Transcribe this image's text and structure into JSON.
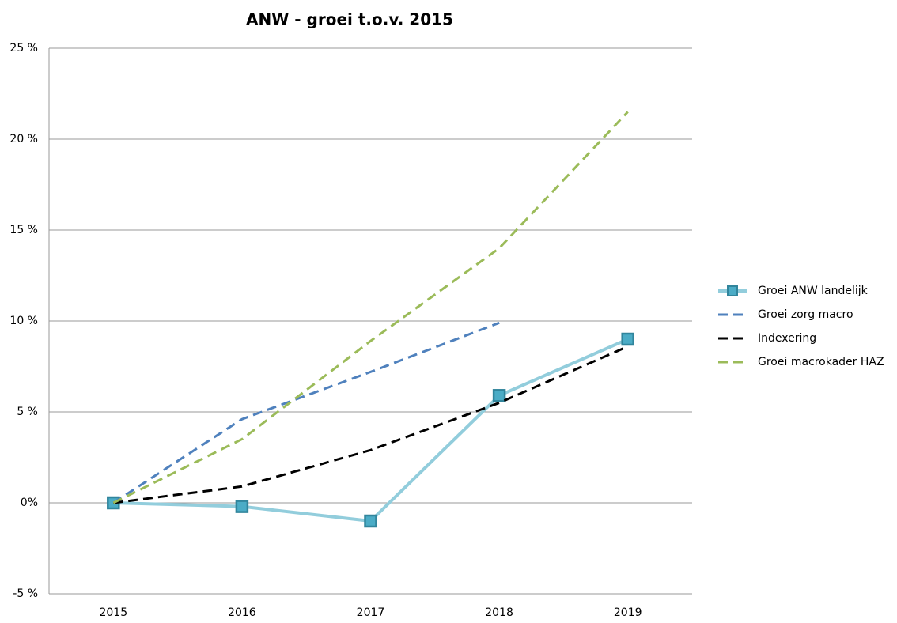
{
  "chart_data": {
    "type": "line",
    "title": "ANW - groei t.o.v. 2015",
    "categories": [
      "2015",
      "2016",
      "2017",
      "2018",
      "2019"
    ],
    "series": [
      {
        "name": "Groei ANW landelijk",
        "color": "#92cddc",
        "marker_color": "#4bacc6",
        "marker_edge": "#31859c",
        "dashed": false,
        "marker": true,
        "values": [
          0,
          -0.2,
          -1.0,
          5.9,
          9.0
        ]
      },
      {
        "name": "Groei zorg macro",
        "color": "#4f81bd",
        "dashed": true,
        "marker": false,
        "values": [
          0,
          4.6,
          7.2,
          9.9,
          null
        ]
      },
      {
        "name": "Indexering",
        "color": "#000000",
        "dashed": true,
        "marker": false,
        "values": [
          0,
          0.9,
          2.9,
          5.5,
          8.6
        ]
      },
      {
        "name": "Groei macrokader HAZ",
        "color": "#9bbb59",
        "dashed": true,
        "marker": false,
        "values": [
          0,
          3.5,
          8.9,
          14.0,
          21.5
        ]
      }
    ],
    "ylim": [
      -5,
      25
    ],
    "yticks": [
      {
        "value": -5,
        "label": "-5 %"
      },
      {
        "value": 0,
        "label": "0%"
      },
      {
        "value": 5,
        "label": "5 %"
      },
      {
        "value": 10,
        "label": "10 %"
      },
      {
        "value": 15,
        "label": "15 %"
      },
      {
        "value": 20,
        "label": "20 %"
      },
      {
        "value": 25,
        "label": "25 %"
      }
    ],
    "grid": true,
    "legend": "right"
  }
}
